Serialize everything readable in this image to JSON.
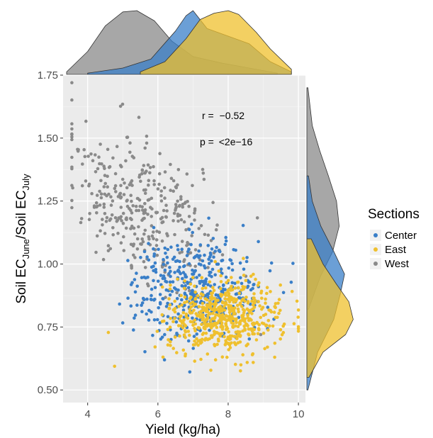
{
  "chart_data": {
    "type": "scatter",
    "xlabel": "Yield (kg/ha)",
    "ylabel": {
      "prefix": "Soil EC",
      "sub1": "June",
      "mid": "/Soil EC",
      "sub2": "July"
    },
    "xlim": [
      3.3,
      10.2
    ],
    "ylim": [
      0.45,
      1.75
    ],
    "x_ticks": [
      4,
      6,
      8,
      10
    ],
    "x_tick_labels": [
      "4",
      "6",
      "8",
      "10"
    ],
    "y_ticks": [
      0.5,
      0.75,
      1.0,
      1.25,
      1.5,
      1.75
    ],
    "y_tick_labels": [
      "0.50",
      "0.75",
      "1.00",
      "1.25",
      "1.50",
      "1.75"
    ],
    "grid": true,
    "panel_background": "#ebebeb",
    "legend": {
      "title": "Sections",
      "placement": "right"
    },
    "annotations": {
      "r_label": "r =",
      "r_value": "−0.52",
      "p_label": "p =",
      "p_value": "<2e−16"
    },
    "series": [
      {
        "name": "Center",
        "color": "#3a7fc8",
        "point_count": 420,
        "x_mean": 7.1,
        "x_sd": 0.95,
        "y_mean": 0.9,
        "y_sd": 0.1,
        "density_x": [
          [
            4.0,
            0.01
          ],
          [
            5.0,
            0.05
          ],
          [
            5.8,
            0.12
          ],
          [
            6.5,
            0.34
          ],
          [
            6.8,
            0.46
          ],
          [
            7.0,
            0.5
          ],
          [
            7.4,
            0.36
          ],
          [
            8.0,
            0.3
          ],
          [
            8.6,
            0.24
          ],
          [
            9.2,
            0.1
          ],
          [
            9.8,
            0.02
          ]
        ],
        "density_y": [
          [
            0.5,
            0.02
          ],
          [
            0.65,
            0.2
          ],
          [
            0.78,
            0.5
          ],
          [
            0.88,
            0.62
          ],
          [
            0.96,
            0.7
          ],
          [
            1.05,
            0.5
          ],
          [
            1.15,
            0.26
          ],
          [
            1.25,
            0.1
          ],
          [
            1.35,
            0.03
          ]
        ]
      },
      {
        "name": "East",
        "color": "#efc02e",
        "point_count": 560,
        "x_mean": 7.9,
        "x_sd": 0.8,
        "y_mean": 0.79,
        "y_sd": 0.07,
        "density_x": [
          [
            5.5,
            0.02
          ],
          [
            6.2,
            0.1
          ],
          [
            6.8,
            0.28
          ],
          [
            7.2,
            0.43
          ],
          [
            7.6,
            0.48
          ],
          [
            8.0,
            0.5
          ],
          [
            8.3,
            0.47
          ],
          [
            8.8,
            0.33
          ],
          [
            9.2,
            0.2
          ],
          [
            9.8,
            0.04
          ]
        ],
        "density_y": [
          [
            0.55,
            0.04
          ],
          [
            0.65,
            0.3
          ],
          [
            0.72,
            0.72
          ],
          [
            0.78,
            0.86
          ],
          [
            0.85,
            0.78
          ],
          [
            0.92,
            0.55
          ],
          [
            1.0,
            0.3
          ],
          [
            1.1,
            0.08
          ]
        ]
      },
      {
        "name": "West",
        "color": "#8a8a8a",
        "point_count": 360,
        "x_mean": 5.6,
        "x_sd": 1.1,
        "y_mean": 1.17,
        "y_sd": 0.15,
        "density_x": [
          [
            3.4,
            0.02
          ],
          [
            4.0,
            0.18
          ],
          [
            4.5,
            0.38
          ],
          [
            5.0,
            0.49
          ],
          [
            5.4,
            0.5
          ],
          [
            5.9,
            0.42
          ],
          [
            6.4,
            0.26
          ],
          [
            7.0,
            0.14
          ],
          [
            7.8,
            0.09
          ],
          [
            8.6,
            0.05
          ],
          [
            9.4,
            0.01
          ]
        ],
        "density_y": [
          [
            0.82,
            0.03
          ],
          [
            0.95,
            0.25
          ],
          [
            1.05,
            0.48
          ],
          [
            1.15,
            0.6
          ],
          [
            1.25,
            0.55
          ],
          [
            1.35,
            0.4
          ],
          [
            1.45,
            0.24
          ],
          [
            1.55,
            0.1
          ],
          [
            1.7,
            0.02
          ]
        ]
      }
    ]
  }
}
